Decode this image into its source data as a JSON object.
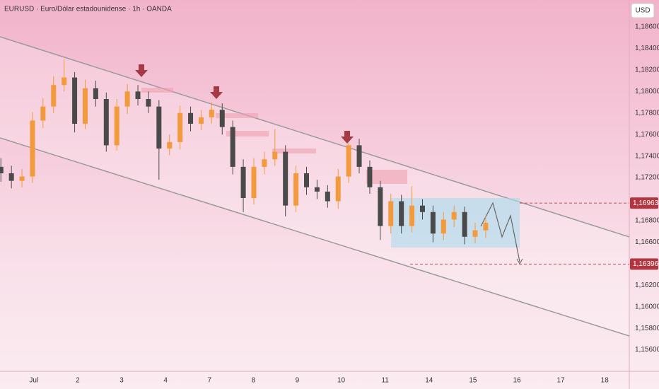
{
  "chart_data": {
    "type": "candlestick",
    "title": "EURUSD · Euro/Dólar estadounidense · 1h · OANDA",
    "currency": "USD",
    "up_color": "#f39a3c",
    "down_color": "#4a4a4a",
    "grid": false,
    "xlim": [
      -0.77,
      13.56
    ],
    "ylim": [
      1.154,
      1.1885
    ],
    "xticks": [
      {
        "value": 0,
        "label": "Jul"
      },
      {
        "value": 1,
        "label": "2"
      },
      {
        "value": 2,
        "label": "3"
      },
      {
        "value": 3,
        "label": "4"
      },
      {
        "value": 4,
        "label": "7"
      },
      {
        "value": 5,
        "label": "8"
      },
      {
        "value": 6,
        "label": "9"
      },
      {
        "value": 7,
        "label": "10"
      },
      {
        "value": 8,
        "label": "11"
      },
      {
        "value": 9,
        "label": "14"
      },
      {
        "value": 10,
        "label": "15"
      },
      {
        "value": 11,
        "label": "16"
      },
      {
        "value": 12,
        "label": "17"
      },
      {
        "value": 13,
        "label": "18"
      }
    ],
    "yticks": [
      {
        "value": 1.156,
        "label": "1,15600"
      },
      {
        "value": 1.158,
        "label": "1,15800"
      },
      {
        "value": 1.16,
        "label": "1,16000"
      },
      {
        "value": 1.162,
        "label": "1,16200"
      },
      {
        "value": 1.166,
        "label": "1,16600"
      },
      {
        "value": 1.168,
        "label": "1,16800"
      },
      {
        "value": 1.172,
        "label": "1,17200"
      },
      {
        "value": 1.174,
        "label": "1,17400"
      },
      {
        "value": 1.176,
        "label": "1,17600"
      },
      {
        "value": 1.178,
        "label": "1,17800"
      },
      {
        "value": 1.18,
        "label": "1,18000"
      },
      {
        "value": 1.182,
        "label": "1,18200"
      },
      {
        "value": 1.184,
        "label": "1,18400"
      },
      {
        "value": 1.186,
        "label": "1,18600"
      }
    ],
    "price_labels": [
      {
        "value": 1.16963,
        "label": "1,16963"
      },
      {
        "value": 1.16396,
        "label": "1,16396"
      }
    ],
    "x": [
      -0.75,
      -0.51,
      -0.27,
      -0.03,
      0.21,
      0.45,
      0.69,
      0.93,
      1.17,
      1.41,
      1.65,
      1.89,
      2.13,
      2.37,
      2.61,
      2.85,
      3.09,
      3.33,
      3.57,
      3.81,
      4.05,
      4.29,
      4.53,
      4.77,
      5.01,
      5.25,
      5.49,
      5.73,
      5.97,
      6.21,
      6.45,
      6.69,
      6.93,
      7.17,
      7.41,
      7.65,
      7.89,
      8.13,
      8.37,
      8.61,
      8.85,
      9.09,
      9.33,
      9.57,
      9.81,
      10.05,
      10.29
    ],
    "open": [
      1.173,
      1.1724,
      1.1717,
      1.1721,
      1.1773,
      1.1786,
      1.1806,
      1.1813,
      1.177,
      1.1803,
      1.1793,
      1.175,
      1.1786,
      1.18,
      1.1793,
      1.1786,
      1.1747,
      1.1753,
      1.178,
      1.177,
      1.1776,
      1.1783,
      1.1767,
      1.173,
      1.1701,
      1.173,
      1.1737,
      1.1744,
      1.1694,
      1.1724,
      1.1711,
      1.1707,
      1.1698,
      1.1721,
      1.175,
      1.173,
      1.1711,
      1.1675,
      1.1698,
      1.1675,
      1.1694,
      1.1688,
      1.1668,
      1.1681,
      1.1688,
      1.1665,
      1.1671
    ],
    "high": [
      1.1738,
      1.1731,
      1.1728,
      1.1781,
      1.1794,
      1.1814,
      1.183,
      1.1818,
      1.1811,
      1.181,
      1.1799,
      1.1793,
      1.1807,
      1.1806,
      1.18,
      1.1792,
      1.176,
      1.1787,
      1.1786,
      1.1783,
      1.179,
      1.1789,
      1.1773,
      1.1737,
      1.1738,
      1.1744,
      1.1765,
      1.175,
      1.1731,
      1.173,
      1.1718,
      1.1713,
      1.1728,
      1.1752,
      1.1756,
      1.1736,
      1.1717,
      1.1705,
      1.1704,
      1.1712,
      1.17,
      1.1694,
      1.1688,
      1.1694,
      1.1693,
      1.1678,
      1.1684
    ],
    "low": [
      1.1716,
      1.171,
      1.1711,
      1.1715,
      1.1766,
      1.178,
      1.18,
      1.1762,
      1.1765,
      1.1786,
      1.1744,
      1.1745,
      1.1779,
      1.1787,
      1.178,
      1.1718,
      1.1741,
      1.1746,
      1.1763,
      1.1764,
      1.177,
      1.176,
      1.1723,
      1.1688,
      1.1695,
      1.1723,
      1.1731,
      1.1684,
      1.1688,
      1.1704,
      1.17,
      1.1692,
      1.1691,
      1.1715,
      1.1724,
      1.1705,
      1.1662,
      1.1668,
      1.1668,
      1.1669,
      1.1681,
      1.166,
      1.1662,
      1.1674,
      1.1658,
      1.1659,
      1.1664
    ],
    "close": [
      1.1724,
      1.1717,
      1.1721,
      1.1773,
      1.1786,
      1.1806,
      1.1813,
      1.177,
      1.1803,
      1.1793,
      1.175,
      1.1786,
      1.18,
      1.1793,
      1.1786,
      1.1747,
      1.1753,
      1.178,
      1.177,
      1.1776,
      1.1783,
      1.1767,
      1.173,
      1.1701,
      1.173,
      1.1737,
      1.1744,
      1.1694,
      1.1724,
      1.1711,
      1.1707,
      1.1698,
      1.1721,
      1.175,
      1.173,
      1.1711,
      1.1675,
      1.1698,
      1.1675,
      1.1694,
      1.1688,
      1.1668,
      1.1681,
      1.1688,
      1.1665,
      1.1671,
      1.1678
    ]
  }
}
